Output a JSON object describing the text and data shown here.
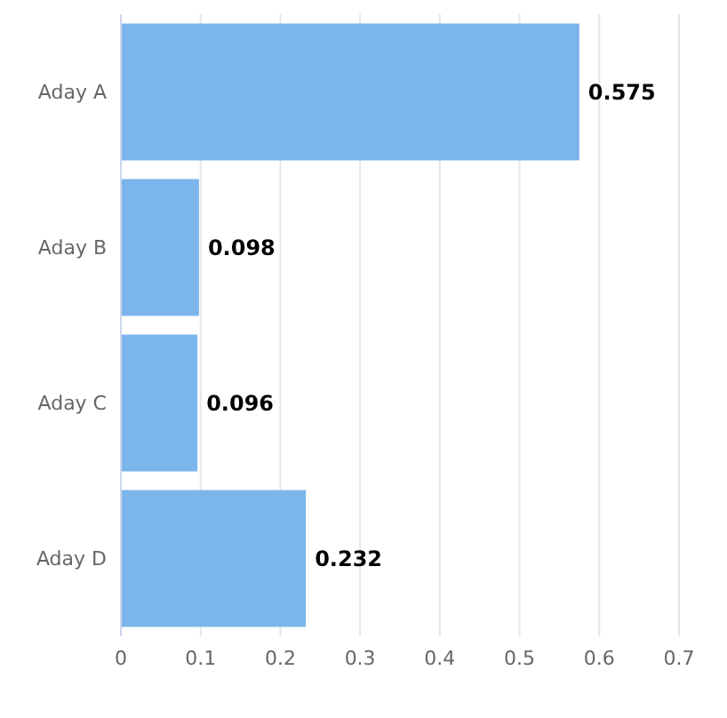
{
  "chart_data": {
    "type": "bar",
    "orientation": "horizontal",
    "categories": [
      "Aday A",
      "Aday B",
      "Aday C",
      "Aday D"
    ],
    "values": [
      0.575,
      0.098,
      0.096,
      0.232
    ],
    "color": "#7cb5ec",
    "xlim": [
      0,
      0.7
    ],
    "xticks": [
      0,
      0.1,
      0.2,
      0.3,
      0.4,
      0.5,
      0.6,
      0.7
    ],
    "grid": "x",
    "data_labels": true
  }
}
